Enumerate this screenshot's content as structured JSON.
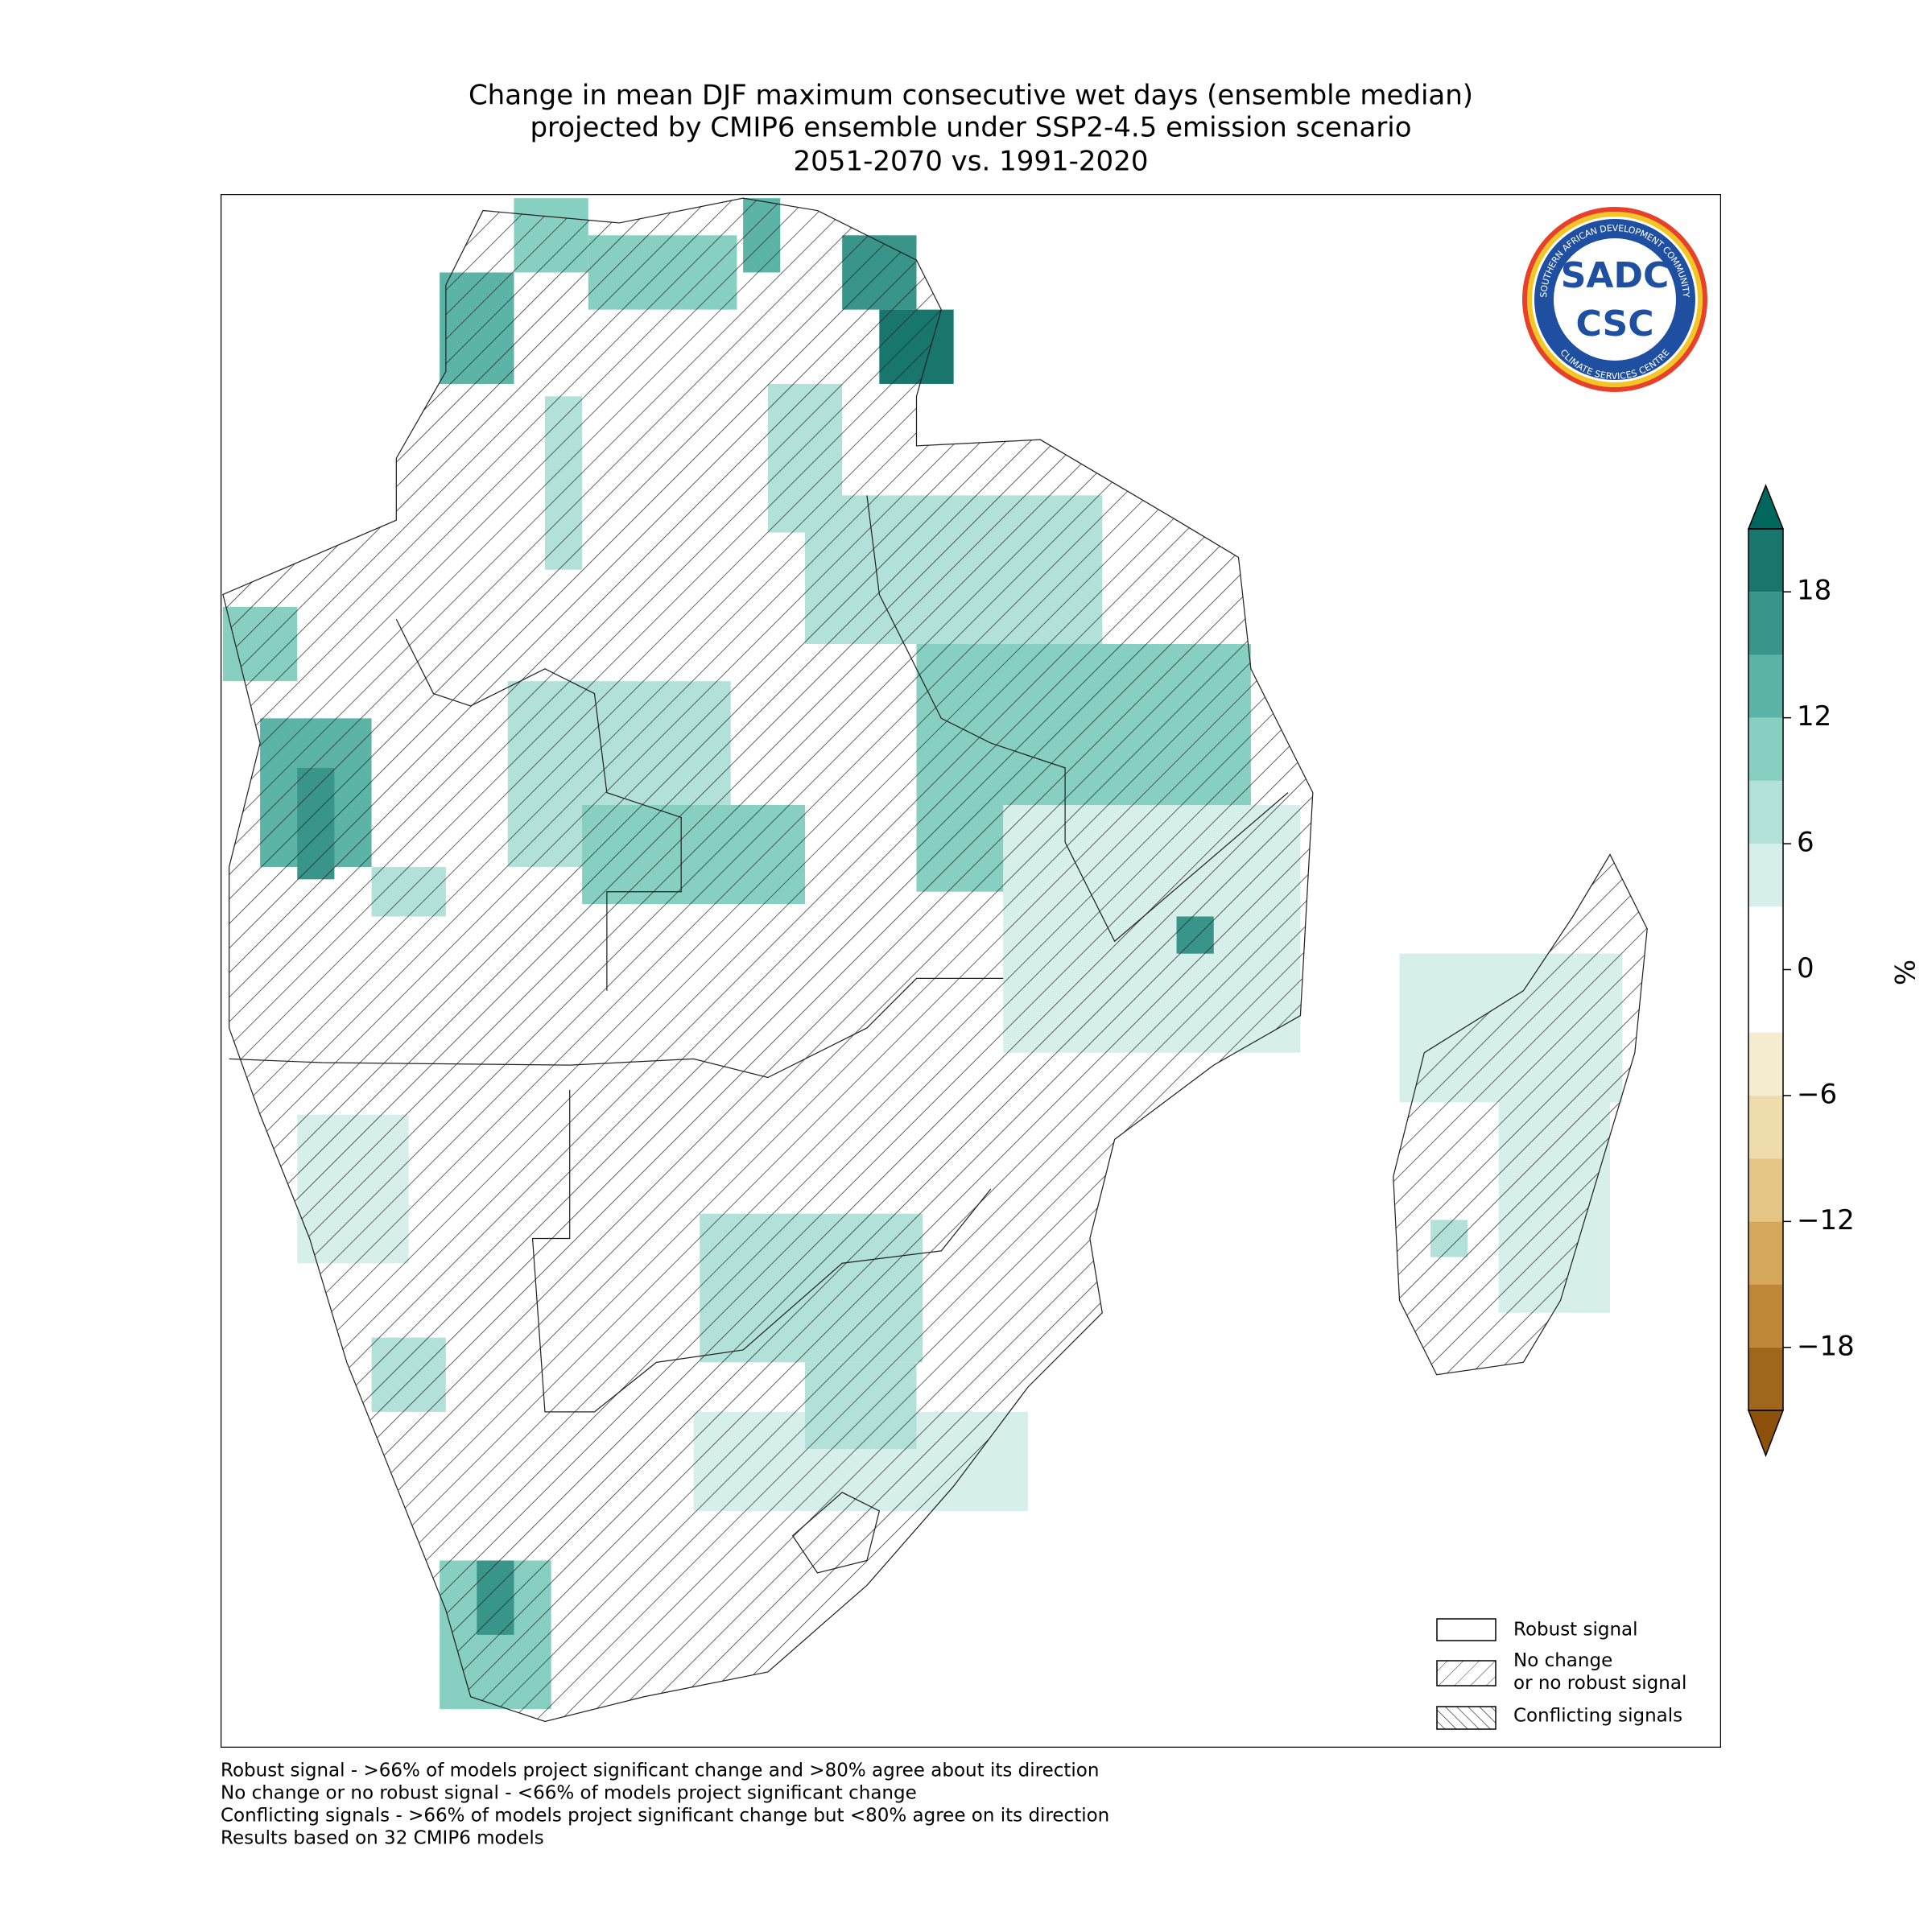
{
  "title": [
    "Change in mean DJF maximum consecutive wet days (ensemble median)",
    "projected by CMIP6 ensemble under SSP2-4.5 emission scenario",
    "2051-2070 vs. 1991-2020"
  ],
  "logo": {
    "top": "SOUTHERN AFRICAN DEVELOPMENT COMMUNITY",
    "center": [
      "SADC",
      "CSC"
    ],
    "bottom": "CLIMATE SERVICES CENTRE"
  },
  "colorbar": {
    "label": "%",
    "lim": [
      -21,
      21
    ],
    "bounds": [
      -21,
      -18,
      -15,
      -12,
      -9,
      -6,
      -3,
      3,
      6,
      9,
      12,
      15,
      18,
      21
    ],
    "colors": [
      "#a0661c",
      "#bf8737",
      "#d5a85c",
      "#e4c585",
      "#efdcac",
      "#f6ecd0",
      "#ffffff",
      "#d6efeb",
      "#b2e1d9",
      "#86cfc1",
      "#5cb4a7",
      "#399489",
      "#18766d"
    ],
    "extend_colors": [
      "#8c510a",
      "#01665e"
    ],
    "ticks": [
      18,
      12,
      6,
      0,
      {
        "value": -6,
        "label": "−6"
      },
      {
        "value": -12,
        "label": "−12"
      },
      {
        "value": -18,
        "label": "−18"
      }
    ]
  },
  "legend": [
    "Robust signal",
    "No change\nor no robust signal",
    "Conflicting signals"
  ],
  "notes": [
    "Robust signal - >66% of models project significant change and >80% agree about its direction",
    "No change or no robust signal - <66% of models project significant change",
    "Conflicting signals - >66% of models project significant change but <80% agree on its direction",
    "Results based on 32 CMIP6 models"
  ]
}
